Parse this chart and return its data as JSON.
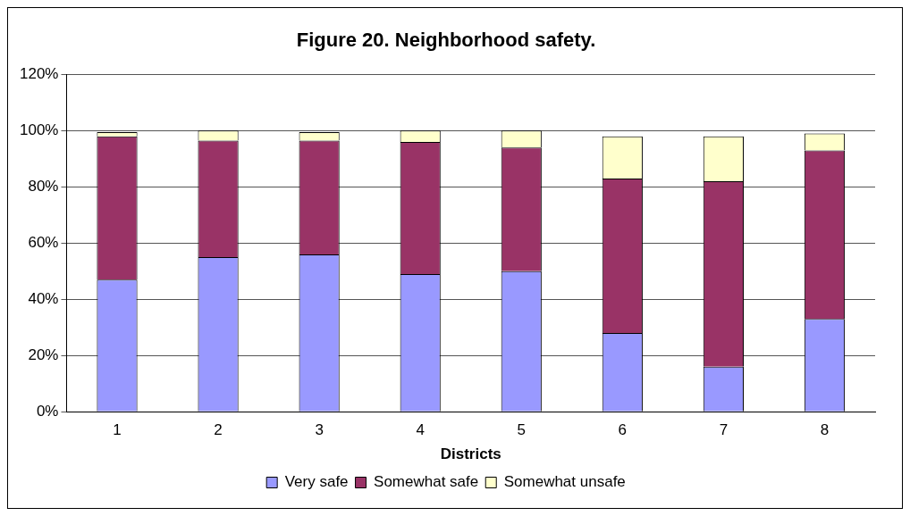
{
  "chart_data": {
    "type": "bar",
    "title": "Figure 20. Neighborhood safety.",
    "xlabel": "Districts",
    "categories": [
      "1",
      "2",
      "3",
      "4",
      "5",
      "6",
      "7",
      "8"
    ],
    "stacked": true,
    "series": [
      {
        "name": "Very safe",
        "color": "#9999ff",
        "values": [
          47,
          55,
          56,
          49,
          50,
          28,
          16,
          33
        ]
      },
      {
        "name": "Somewhat safe",
        "color": "#993366",
        "values": [
          51,
          41.5,
          40.5,
          47,
          44,
          55,
          66,
          60
        ]
      },
      {
        "name": "Somewhat unsafe",
        "color": "#ffffcc",
        "values": [
          1.5,
          3.5,
          3,
          4,
          6,
          15,
          16,
          6
        ]
      }
    ],
    "ylim": [
      0,
      120
    ],
    "yticks": [
      {
        "value": 0,
        "label": "0%"
      },
      {
        "value": 20,
        "label": "20%"
      },
      {
        "value": 40,
        "label": "40%"
      },
      {
        "value": 60,
        "label": "60%"
      },
      {
        "value": 80,
        "label": "80%"
      },
      {
        "value": 100,
        "label": "100%"
      },
      {
        "value": 120,
        "label": "120%"
      }
    ],
    "grid": "y",
    "legend": "bottom"
  }
}
